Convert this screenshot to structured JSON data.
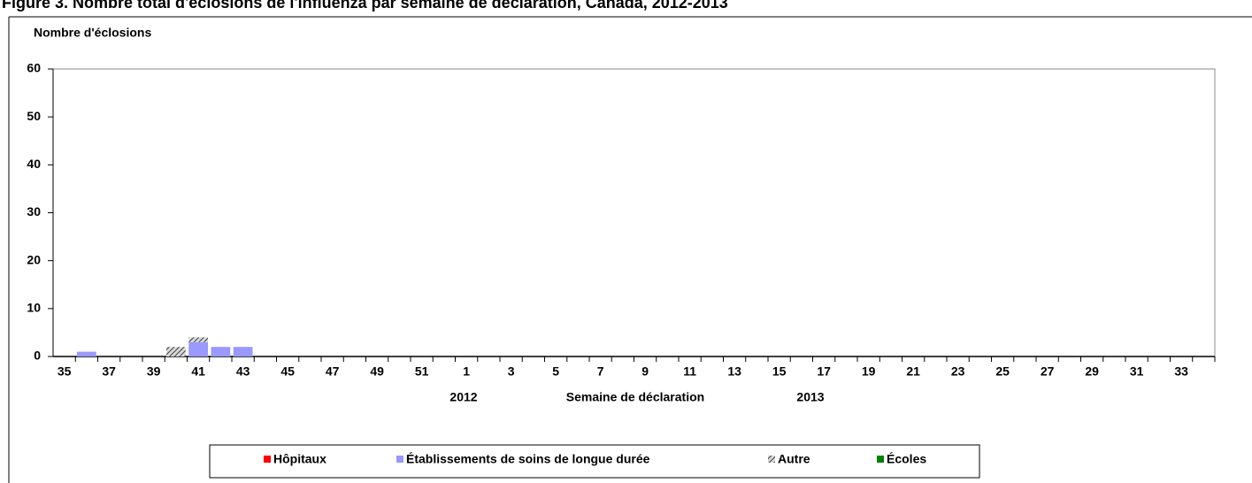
{
  "chart_data": {
    "type": "stacked_bar",
    "title": "Figure 3. Nombre total d'éclosions de l'influenza par semaine de déclaration, Canada, 2012-2013",
    "y_label": "Nombre d'éclosions",
    "x_label": "Semaine de déclaration",
    "year_labels": [
      "2012",
      "2013"
    ],
    "categories": [
      "35",
      null,
      "37",
      null,
      "39",
      null,
      "41",
      null,
      "43",
      null,
      "45",
      null,
      "47",
      null,
      "49",
      null,
      "51",
      null,
      "1",
      null,
      "3",
      null,
      "5",
      null,
      "7",
      null,
      "9",
      null,
      "11",
      null,
      "13",
      null,
      "15",
      null,
      "17",
      null,
      "19",
      null,
      "21",
      null,
      "23",
      null,
      "25",
      null,
      "27",
      null,
      "29",
      null,
      "31",
      null,
      "33",
      null
    ],
    "series": [
      {
        "name": "Hôpitaux",
        "color": "#ff0000",
        "values": [
          0,
          0,
          0,
          0,
          0,
          0,
          0,
          0,
          0,
          0,
          0,
          0,
          0,
          0,
          0,
          0,
          0,
          0,
          0,
          0,
          0,
          0,
          0,
          0,
          0,
          0,
          0,
          0,
          0,
          0,
          0,
          0,
          0,
          0,
          0,
          0,
          0,
          0,
          0,
          0,
          0,
          0,
          0,
          0,
          0,
          0,
          0,
          0,
          0,
          0,
          0,
          0
        ]
      },
      {
        "name": "Établissements de soins de longue durée",
        "color": "#9999ff",
        "values": [
          0,
          1,
          0,
          0,
          0,
          0,
          3,
          2,
          2,
          0,
          0,
          0,
          0,
          0,
          0,
          0,
          0,
          0,
          0,
          0,
          0,
          0,
          0,
          0,
          0,
          0,
          0,
          0,
          0,
          0,
          0,
          0,
          0,
          0,
          0,
          0,
          0,
          0,
          0,
          0,
          0,
          0,
          0,
          0,
          0,
          0,
          0,
          0,
          0,
          0,
          0,
          0
        ]
      },
      {
        "name": "Autre",
        "color": "#808080",
        "pattern": "hatch",
        "values": [
          0,
          0,
          0,
          0,
          0,
          2,
          1,
          0,
          0,
          0,
          0,
          0,
          0,
          0,
          0,
          0,
          0,
          0,
          0,
          0,
          0,
          0,
          0,
          0,
          0,
          0,
          0,
          0,
          0,
          0,
          0,
          0,
          0,
          0,
          0,
          0,
          0,
          0,
          0,
          0,
          0,
          0,
          0,
          0,
          0,
          0,
          0,
          0,
          0,
          0,
          0,
          0
        ]
      },
      {
        "name": "Écoles",
        "color": "#008000",
        "values": [
          0,
          0,
          0,
          0,
          0,
          0,
          0,
          0,
          0,
          0,
          0,
          0,
          0,
          0,
          0,
          0,
          0,
          0,
          0,
          0,
          0,
          0,
          0,
          0,
          0,
          0,
          0,
          0,
          0,
          0,
          0,
          0,
          0,
          0,
          0,
          0,
          0,
          0,
          0,
          0,
          0,
          0,
          0,
          0,
          0,
          0,
          0,
          0,
          0,
          0,
          0,
          0
        ]
      }
    ],
    "ylim": [
      0,
      60
    ],
    "yticks": [
      0,
      10,
      20,
      30,
      40,
      50,
      60
    ],
    "legend": "bottom"
  }
}
